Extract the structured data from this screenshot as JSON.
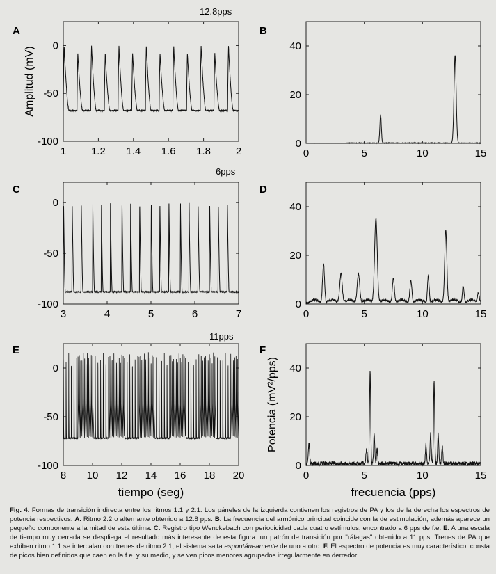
{
  "figure": {
    "rate_labels": [
      "12.8pps",
      "6pps",
      "11pps"
    ],
    "caption_segments": [
      {
        "t": "Fig. 4.",
        "b": true
      },
      {
        "t": " Formas de transición indirecta entre los ritmos 1:1 y 2:1. Los páneles de la izquierda contienen los registros de PA y los de la derecha los espectros de potencia respectivos. ",
        "b": false
      },
      {
        "t": "A.",
        "b": true
      },
      {
        "t": " Ritmo 2:2 o alternante obtenido a 12.8 pps. ",
        "b": false
      },
      {
        "t": "B.",
        "b": true
      },
      {
        "t": " La frecuencia del armónico principal coincide con la de estimulación, además aparece un pequeño componente a la mitad de esta última. ",
        "b": false
      },
      {
        "t": "C.",
        "b": true
      },
      {
        "t": " Registro tipo Wenckebach con periodicidad cada cuatro estímulos, encontrado a 6 pps de f.e. ",
        "b": false
      },
      {
        "t": "E.",
        "b": true
      },
      {
        "t": " A una escala de tiempo muy cerrada se despliega el resultado más interesante de esta figura: un patrón de transición por \"ráfagas\" obtenido a 11 pps. Trenes de PA que exhiben ritmo 1:1 se intercalan con trenes de ritmo 2:1, el sistema salta ",
        "b": false
      },
      {
        "t": "espontáneamente",
        "i": true
      },
      {
        "t": " de uno a otro. ",
        "b": false
      },
      {
        "t": "F.",
        "b": true
      },
      {
        "t": " El espectro de potencia es muy característico, consta de picos bien definidos que caen en la f.e. y su medio, y se ven picos menores agrupados irregularmente en derredor.",
        "b": false
      }
    ]
  },
  "chart_data": [
    {
      "panel": "A",
      "type": "line",
      "title": "12.8pps",
      "xlabel": "",
      "ylabel": "Amplitud (mV)",
      "xlim": [
        1,
        2
      ],
      "ylim": [
        -100,
        25
      ],
      "x_ticks": [
        1,
        1.2,
        1.4,
        1.6,
        1.8,
        2
      ],
      "x_tick_labels": [
        "1",
        "1.2",
        "1.4",
        "1.6",
        "1.8",
        "2"
      ],
      "y_ticks": [
        0,
        -50,
        -100
      ],
      "y_tick_labels": [
        "0",
        "-50",
        "-100"
      ],
      "signal": {
        "kind": "alternans",
        "start": 1.0,
        "period": 0.078125,
        "rest": -68,
        "peaks": [
          0,
          -8
        ],
        "width": 0.032
      }
    },
    {
      "panel": "B",
      "type": "line",
      "xlabel": "",
      "ylabel": "",
      "xlim": [
        0,
        15
      ],
      "ylim": [
        0,
        50
      ],
      "x_ticks": [
        0,
        5,
        10,
        15
      ],
      "x_tick_labels": [
        "0",
        "5",
        "10",
        "15"
      ],
      "y_ticks": [
        0,
        20,
        40
      ],
      "y_tick_labels": [
        "0",
        "20",
        "40"
      ],
      "spectrum": {
        "noise": 0.25,
        "peaks": [
          {
            "f": 6.4,
            "a": 11.5,
            "w": 0.09
          },
          {
            "f": 12.8,
            "a": 36,
            "w": 0.13
          }
        ]
      }
    },
    {
      "panel": "C",
      "type": "line",
      "title": "6pps",
      "xlabel": "",
      "ylabel": "",
      "xlim": [
        3,
        7
      ],
      "ylim": [
        -100,
        20
      ],
      "x_ticks": [
        3,
        4,
        5,
        6,
        7
      ],
      "x_tick_labels": [
        "3",
        "4",
        "5",
        "6",
        "7"
      ],
      "y_ticks": [
        0,
        -50,
        -100
      ],
      "y_tick_labels": [
        "0",
        "-50",
        "-100"
      ],
      "signal": {
        "kind": "wenckebach",
        "start": 3.0,
        "period": 0.1667,
        "rest": -88,
        "peak": 0,
        "width": 0.045,
        "group_lags": [
          0,
          0.03,
          0.07
        ],
        "group_size": 4
      }
    },
    {
      "panel": "D",
      "type": "line",
      "xlabel": "",
      "ylabel": "",
      "xlim": [
        0,
        15
      ],
      "ylim": [
        0,
        50
      ],
      "x_ticks": [
        0,
        5,
        10,
        15
      ],
      "x_tick_labels": [
        "0",
        "5",
        "10",
        "15"
      ],
      "y_ticks": [
        0,
        20,
        40
      ],
      "y_tick_labels": [
        "0",
        "20",
        "40"
      ],
      "spectrum": {
        "noise": 1.0,
        "peaks": [
          {
            "f": 1.5,
            "a": 16,
            "w": 0.12
          },
          {
            "f": 3.0,
            "a": 12,
            "w": 0.15
          },
          {
            "f": 4.5,
            "a": 12,
            "w": 0.15
          },
          {
            "f": 6.0,
            "a": 35,
            "w": 0.16
          },
          {
            "f": 7.5,
            "a": 10,
            "w": 0.12
          },
          {
            "f": 9.0,
            "a": 9,
            "w": 0.12
          },
          {
            "f": 10.5,
            "a": 11,
            "w": 0.1
          },
          {
            "f": 12.0,
            "a": 30,
            "w": 0.13
          },
          {
            "f": 13.5,
            "a": 7,
            "w": 0.1
          },
          {
            "f": 14.8,
            "a": 4,
            "w": 0.12
          }
        ]
      }
    },
    {
      "panel": "E",
      "type": "line",
      "title": "11pps",
      "xlabel": "tiempo (seg)",
      "ylabel": "",
      "xlim": [
        8,
        20
      ],
      "ylim": [
        -100,
        25
      ],
      "x_ticks": [
        8,
        10,
        12,
        14,
        16,
        18,
        20
      ],
      "x_tick_labels": [
        "8",
        "10",
        "12",
        "14",
        "16",
        "18",
        "20"
      ],
      "y_ticks": [
        0,
        -50,
        -100
      ],
      "y_tick_labels": [
        "0",
        "-50",
        "-100"
      ],
      "signal": {
        "kind": "bursts",
        "start": 8.0,
        "period": 0.0909,
        "rest": -72,
        "peak": 16,
        "width": 0.04
      }
    },
    {
      "panel": "F",
      "type": "line",
      "xlabel": "frecuencia (pps)",
      "ylabel": "Potencia (mV²/pps)",
      "xlim": [
        0,
        15
      ],
      "ylim": [
        0,
        50
      ],
      "x_ticks": [
        0,
        5,
        10,
        15
      ],
      "x_tick_labels": [
        "0",
        "5",
        "10",
        "15"
      ],
      "y_ticks": [
        0,
        20,
        40
      ],
      "y_tick_labels": [
        "0",
        "20",
        "40"
      ],
      "spectrum": {
        "noise": 1.6,
        "peaks": [
          {
            "f": 0.25,
            "a": 8,
            "w": 0.08
          },
          {
            "f": 5.2,
            "a": 6,
            "w": 0.08
          },
          {
            "f": 5.5,
            "a": 38,
            "w": 0.07
          },
          {
            "f": 5.85,
            "a": 12,
            "w": 0.07
          },
          {
            "f": 6.1,
            "a": 6,
            "w": 0.07
          },
          {
            "f": 10.3,
            "a": 8,
            "w": 0.07
          },
          {
            "f": 10.7,
            "a": 12,
            "w": 0.07
          },
          {
            "f": 11.0,
            "a": 34,
            "w": 0.07
          },
          {
            "f": 11.35,
            "a": 12,
            "w": 0.07
          },
          {
            "f": 11.7,
            "a": 7,
            "w": 0.07
          }
        ]
      }
    }
  ]
}
